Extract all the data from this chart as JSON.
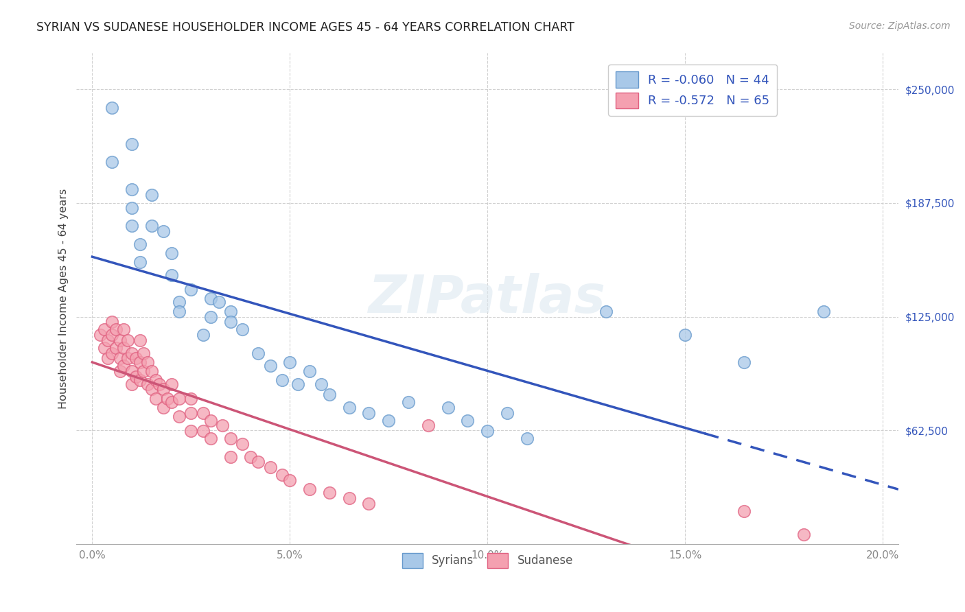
{
  "title": "SYRIAN VS SUDANESE HOUSEHOLDER INCOME AGES 45 - 64 YEARS CORRELATION CHART",
  "source": "Source: ZipAtlas.com",
  "ylabel": "Householder Income Ages 45 - 64 years",
  "xlabel_ticks": [
    "0.0%",
    "5.0%",
    "10.0%",
    "15.0%",
    "20.0%"
  ],
  "xlabel_vals": [
    0.0,
    0.05,
    0.1,
    0.15,
    0.2
  ],
  "ytick_labels": [
    "$62,500",
    "$125,000",
    "$187,500",
    "$250,000"
  ],
  "ytick_vals": [
    62500,
    125000,
    187500,
    250000
  ],
  "ylim": [
    0,
    270000
  ],
  "xlim": [
    -0.004,
    0.204
  ],
  "watermark": "ZIPatlas",
  "legend_r_syrian": "-0.060",
  "legend_n_syrian": "44",
  "legend_r_sudanese": "-0.572",
  "legend_n_sudanese": "65",
  "syrian_color": "#a8c8e8",
  "syrian_edge_color": "#6699cc",
  "sudanese_color": "#f4a0b0",
  "sudanese_edge_color": "#e06080",
  "syrian_line_color": "#3355bb",
  "sudanese_line_color": "#cc5577",
  "syrian_x": [
    0.005,
    0.005,
    0.01,
    0.01,
    0.01,
    0.01,
    0.012,
    0.012,
    0.015,
    0.015,
    0.018,
    0.02,
    0.02,
    0.022,
    0.022,
    0.025,
    0.028,
    0.03,
    0.03,
    0.032,
    0.035,
    0.035,
    0.038,
    0.042,
    0.045,
    0.048,
    0.05,
    0.052,
    0.055,
    0.058,
    0.06,
    0.065,
    0.07,
    0.075,
    0.08,
    0.09,
    0.095,
    0.1,
    0.105,
    0.11,
    0.13,
    0.15,
    0.165,
    0.185
  ],
  "syrian_y": [
    240000,
    210000,
    220000,
    195000,
    185000,
    175000,
    165000,
    155000,
    192000,
    175000,
    172000,
    160000,
    148000,
    133000,
    128000,
    140000,
    115000,
    135000,
    125000,
    133000,
    128000,
    122000,
    118000,
    105000,
    98000,
    90000,
    100000,
    88000,
    95000,
    88000,
    82000,
    75000,
    72000,
    68000,
    78000,
    75000,
    68000,
    62000,
    72000,
    58000,
    128000,
    115000,
    100000,
    128000
  ],
  "sudanese_x": [
    0.002,
    0.003,
    0.003,
    0.004,
    0.004,
    0.005,
    0.005,
    0.005,
    0.006,
    0.006,
    0.007,
    0.007,
    0.007,
    0.008,
    0.008,
    0.008,
    0.009,
    0.009,
    0.01,
    0.01,
    0.01,
    0.011,
    0.011,
    0.012,
    0.012,
    0.012,
    0.013,
    0.013,
    0.014,
    0.014,
    0.015,
    0.015,
    0.016,
    0.016,
    0.017,
    0.018,
    0.018,
    0.019,
    0.02,
    0.02,
    0.022,
    0.022,
    0.025,
    0.025,
    0.025,
    0.028,
    0.028,
    0.03,
    0.03,
    0.033,
    0.035,
    0.035,
    0.038,
    0.04,
    0.042,
    0.045,
    0.048,
    0.05,
    0.055,
    0.06,
    0.065,
    0.07,
    0.085,
    0.165,
    0.18
  ],
  "sudanese_y": [
    115000,
    118000,
    108000,
    112000,
    102000,
    122000,
    115000,
    105000,
    118000,
    108000,
    112000,
    102000,
    95000,
    118000,
    108000,
    98000,
    112000,
    102000,
    105000,
    95000,
    88000,
    102000,
    92000,
    112000,
    100000,
    90000,
    105000,
    95000,
    100000,
    88000,
    95000,
    85000,
    90000,
    80000,
    88000,
    85000,
    75000,
    80000,
    88000,
    78000,
    80000,
    70000,
    80000,
    72000,
    62000,
    72000,
    62000,
    68000,
    58000,
    65000,
    58000,
    48000,
    55000,
    48000,
    45000,
    42000,
    38000,
    35000,
    30000,
    28000,
    25000,
    22000,
    65000,
    18000,
    5000
  ],
  "background_color": "#ffffff",
  "grid_color": "#cccccc",
  "tick_color": "#888888"
}
